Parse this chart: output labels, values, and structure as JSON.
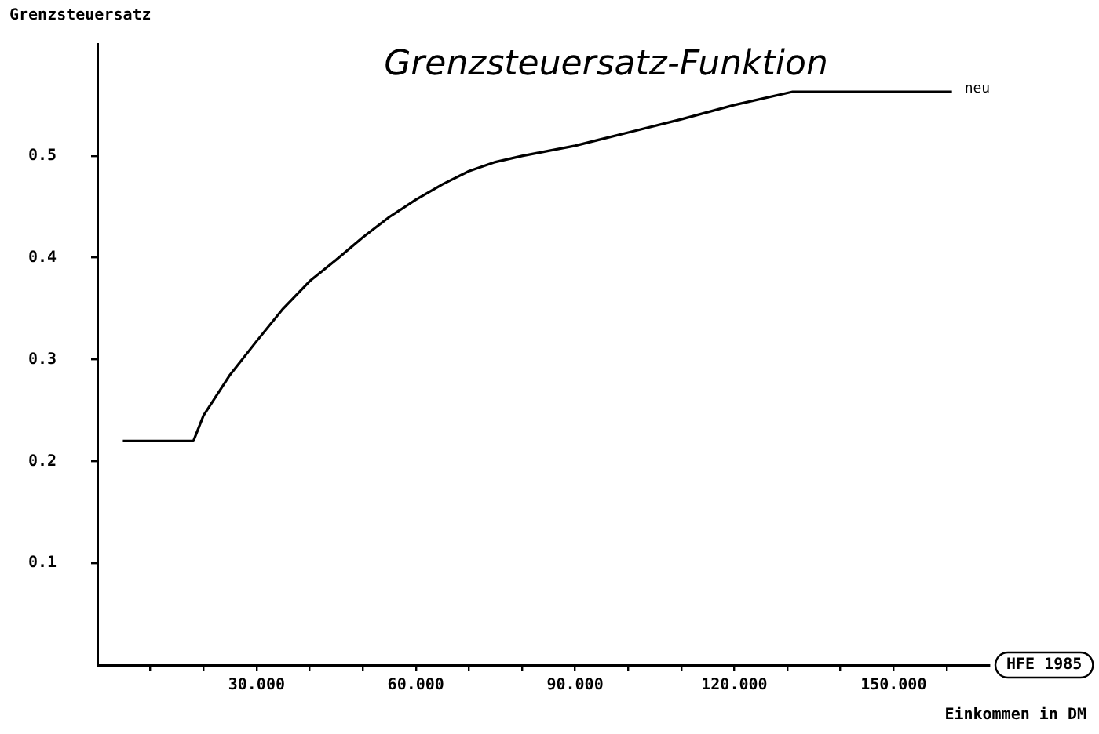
{
  "chart_data": {
    "type": "line",
    "title": "Grenzsteuersatz-Funktion",
    "xlabel": "Einkommen in DM",
    "ylabel": "Grenzsteuersatz",
    "series": [
      {
        "name": "neu",
        "color": "#000000",
        "x": [
          4.8,
          18.1,
          20,
          25,
          30,
          35,
          40,
          45,
          50,
          55,
          60,
          65,
          70,
          75,
          80,
          90,
          100,
          110,
          120,
          131,
          161
        ],
        "values": [
          0.22,
          0.22,
          0.245,
          0.285,
          0.318,
          0.35,
          0.377,
          0.398,
          0.42,
          0.44,
          0.457,
          0.472,
          0.485,
          0.494,
          0.5,
          0.51,
          0.523,
          0.536,
          0.55,
          0.563,
          0.563
        ]
      }
    ],
    "xlim": [
      0,
      168
    ],
    "xticks": [
      {
        "value": 10,
        "label": null
      },
      {
        "value": 20,
        "label": null
      },
      {
        "value": 30,
        "label": "30.000"
      },
      {
        "value": 40,
        "label": null
      },
      {
        "value": 50,
        "label": null
      },
      {
        "value": 60,
        "label": "60.000"
      },
      {
        "value": 70,
        "label": null
      },
      {
        "value": 80,
        "label": null
      },
      {
        "value": 90,
        "label": "90.000"
      },
      {
        "value": 100,
        "label": null
      },
      {
        "value": 110,
        "label": null
      },
      {
        "value": 120,
        "label": "120.000"
      },
      {
        "value": 130,
        "label": null
      },
      {
        "value": 140,
        "label": null
      },
      {
        "value": 150,
        "label": "150.000"
      },
      {
        "value": 160,
        "label": null
      }
    ],
    "ylim": [
      0,
      0.61
    ],
    "yticks": [
      0.1,
      0.2,
      0.3,
      0.4,
      0.5
    ],
    "annotations": [
      "HFE 1985"
    ],
    "legend": false,
    "marker": "none",
    "line_style": "solid"
  }
}
